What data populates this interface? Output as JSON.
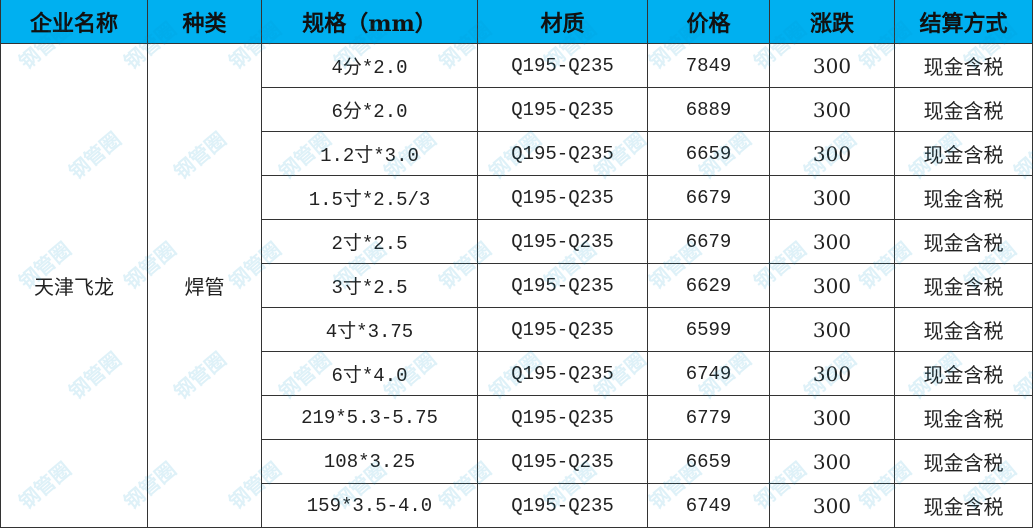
{
  "table": {
    "header": [
      "企业名称",
      "种类",
      "规格（mm）",
      "材质",
      "价格",
      "涨跌",
      "结算方式"
    ],
    "company": "天津飞龙",
    "type": "焊管",
    "rows": [
      [
        "4分*2.0",
        "Q195-Q235",
        "7849",
        "300",
        "现金含税"
      ],
      [
        "6分*2.0",
        "Q195-Q235",
        "6889",
        "300",
        "现金含税"
      ],
      [
        "1.2寸*3.0",
        "Q195-Q235",
        "6659",
        "300",
        "现金含税"
      ],
      [
        "1.5寸*2.5/3",
        "Q195-Q235",
        "6679",
        "300",
        "现金含税"
      ],
      [
        "2寸*2.5",
        "Q195-Q235",
        "6679",
        "300",
        "现金含税"
      ],
      [
        "3寸*2.5",
        "Q195-Q235",
        "6629",
        "300",
        "现金含税"
      ],
      [
        "4寸*3.75",
        "Q195-Q235",
        "6599",
        "300",
        "现金含税"
      ],
      [
        "6寸*4.0",
        "Q195-Q235",
        "6749",
        "300",
        "现金含税"
      ],
      [
        "219*5.3-5.75",
        "Q195-Q235",
        "6779",
        "300",
        "现金含税"
      ],
      [
        "108*3.25",
        "Q195-Q235",
        "6659",
        "300",
        "现金含税"
      ],
      [
        "159*3.5-4.0",
        "Q195-Q235",
        "6749",
        "300",
        "现金含税"
      ]
    ]
  },
  "watermark": "钢管圈"
}
